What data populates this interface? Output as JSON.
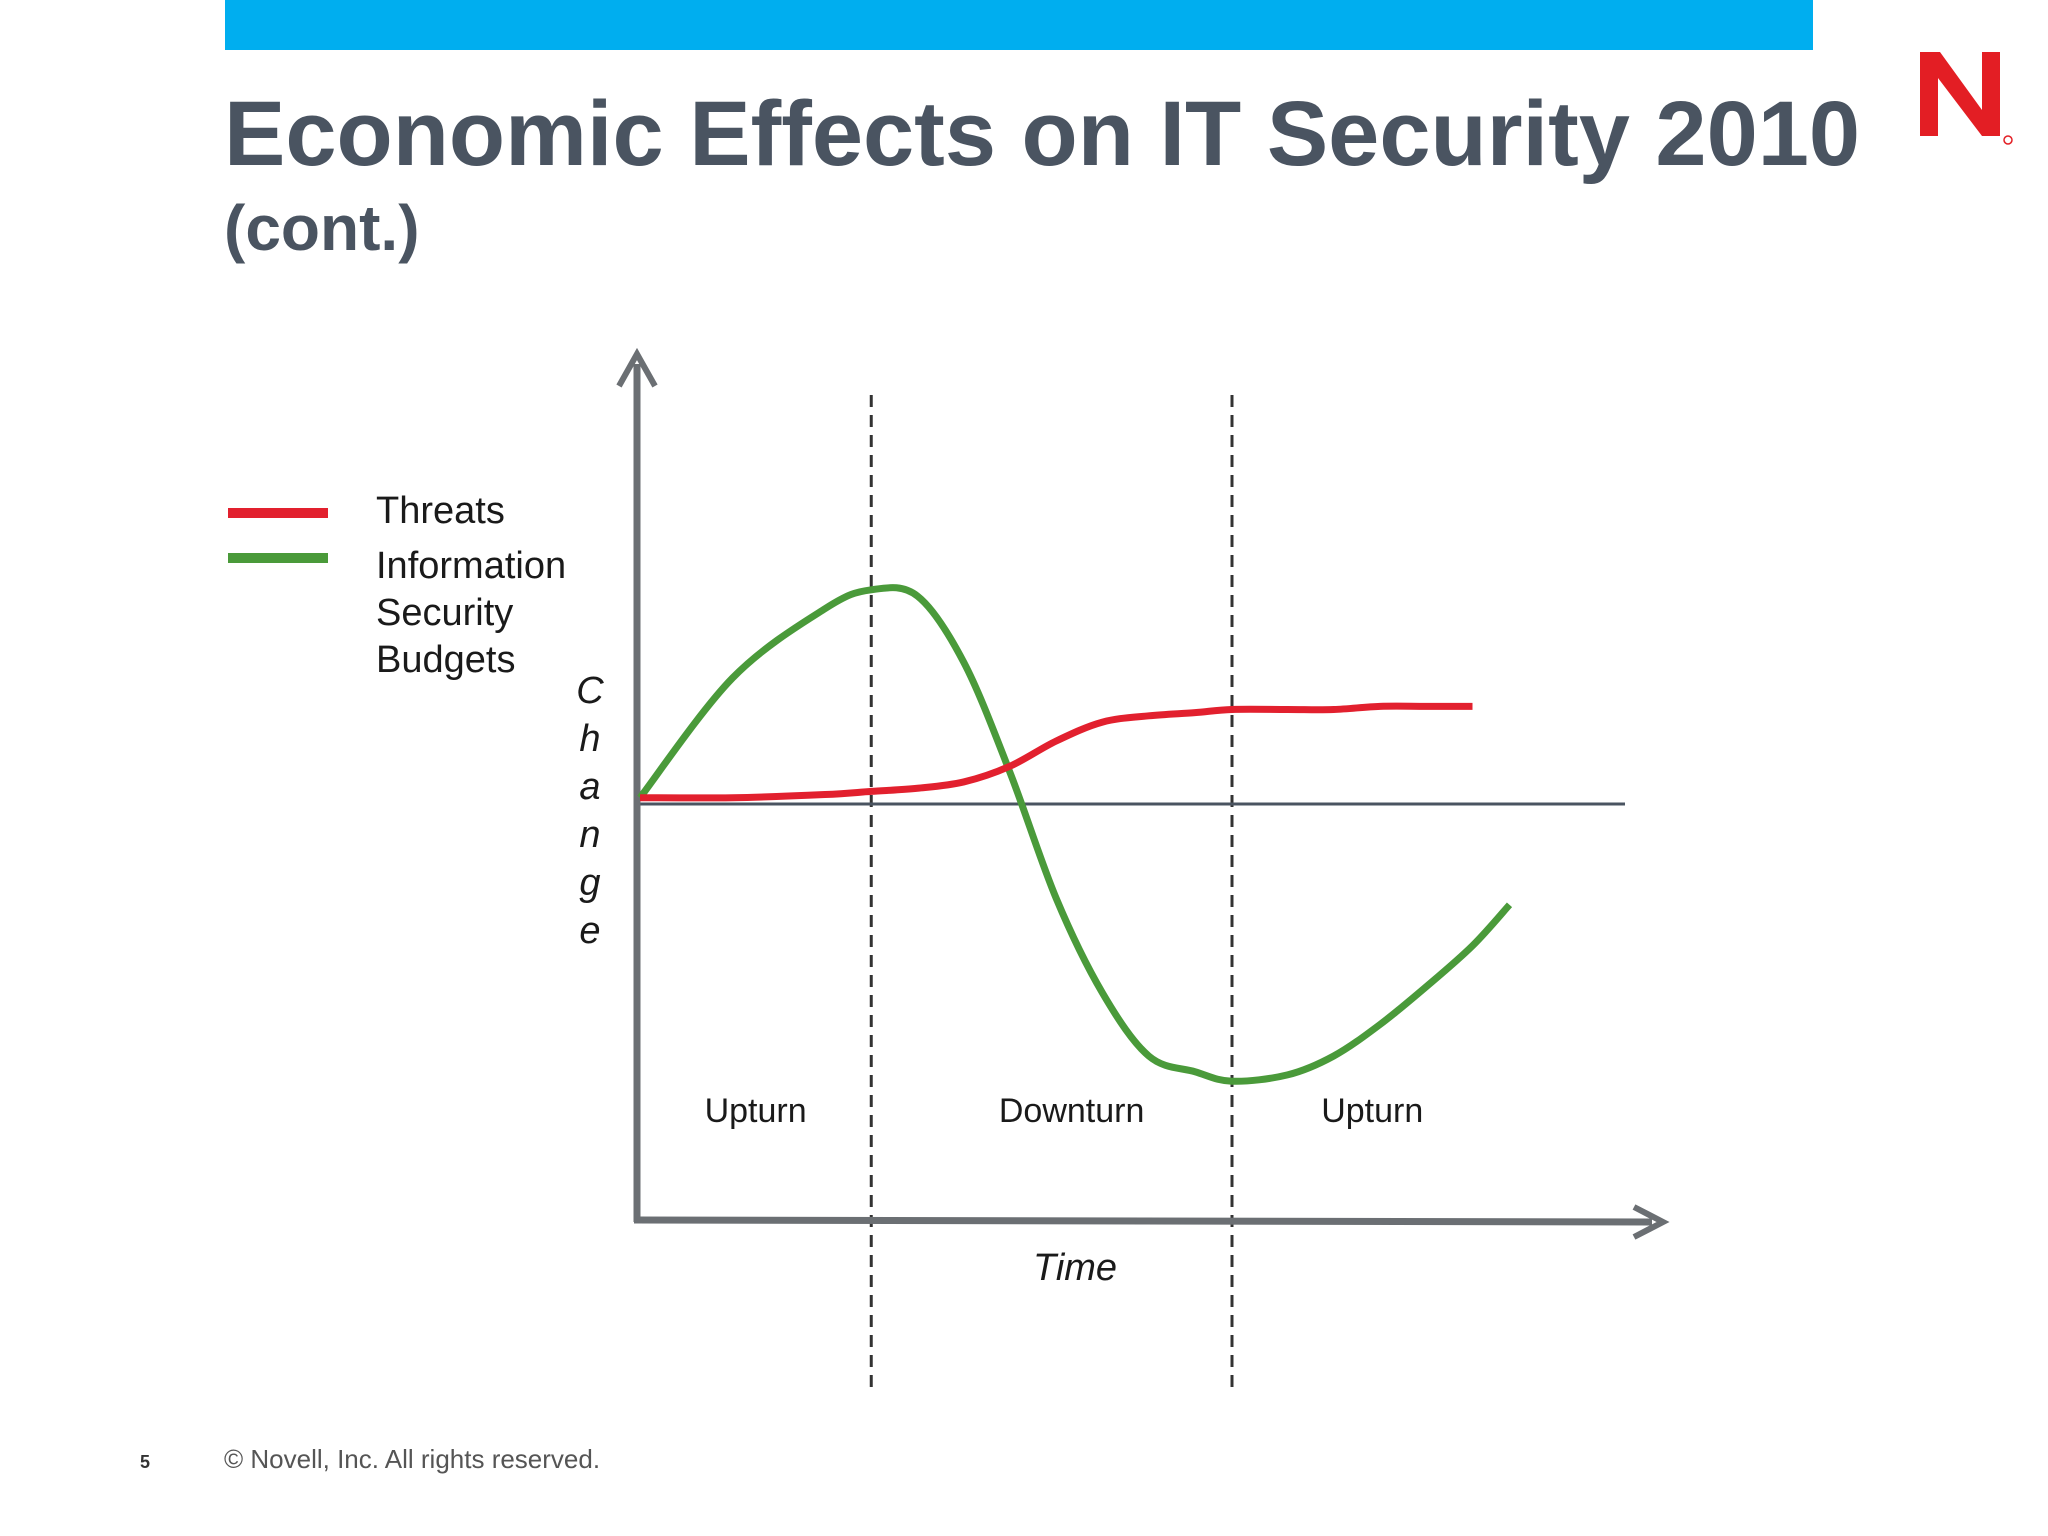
{
  "slide": {
    "title": "Economic Effects on IT Security 2010",
    "subtitle": "(cont.)",
    "page_number": "5",
    "footer": "©  Novell, Inc.  All rights reserved.",
    "logo_letter": "N",
    "accent_bar_color": "#00aeef",
    "logo_color": "#e31e24"
  },
  "chart_data": {
    "type": "line",
    "title": "",
    "xlabel": "Time",
    "ylabel": "Change",
    "grid": false,
    "legend_position": "left",
    "phases": [
      "Upturn",
      "Downturn",
      "Upturn"
    ],
    "phase_boundaries": [
      0.25,
      0.64
    ],
    "x": [
      0.0,
      0.1,
      0.2,
      0.25,
      0.3,
      0.35,
      0.4,
      0.45,
      0.5,
      0.55,
      0.6,
      0.64,
      0.7,
      0.75,
      0.8,
      0.85,
      0.9,
      0.94
    ],
    "ylim": [
      -1.0,
      1.1
    ],
    "series": [
      {
        "name": "Threats",
        "color": "#e2202e",
        "values": [
          0.02,
          0.02,
          0.03,
          0.04,
          0.05,
          0.07,
          0.12,
          0.2,
          0.26,
          0.28,
          0.29,
          0.3,
          0.3,
          0.3,
          0.31,
          0.31,
          0.31,
          null
        ]
      },
      {
        "name": "Information Security Budgets",
        "color": "#4a9a3a",
        "values": [
          0.02,
          0.4,
          0.62,
          0.68,
          0.66,
          0.45,
          0.1,
          -0.3,
          -0.6,
          -0.8,
          -0.85,
          -0.88,
          -0.86,
          -0.8,
          -0.7,
          -0.58,
          -0.45,
          -0.32
        ]
      }
    ]
  }
}
